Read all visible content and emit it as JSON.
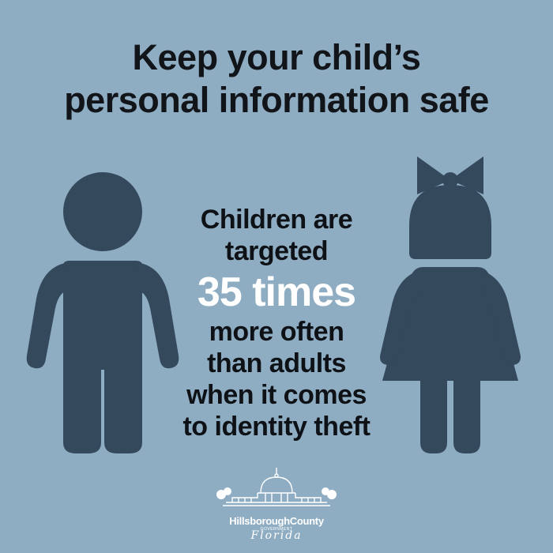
{
  "headline": {
    "line1": "Keep your child’s",
    "line2": "personal information safe"
  },
  "stat": {
    "line1": "Children are",
    "line2": "targeted",
    "highlight": "35 times",
    "line3": "more often",
    "line4": "than adults",
    "line5": "when it comes",
    "line6": "to identity theft"
  },
  "figures": {
    "left_icon": "boy-icon",
    "right_icon": "girl-icon"
  },
  "logo": {
    "name": "HillsboroughCounty",
    "government": "GOVERNMENT",
    "state": "Florida",
    "icon": "courthouse-dome-icon"
  },
  "colors": {
    "background": "#8fadc2",
    "figure": "#34495c",
    "text": "#111418",
    "highlight": "#ffffff"
  }
}
